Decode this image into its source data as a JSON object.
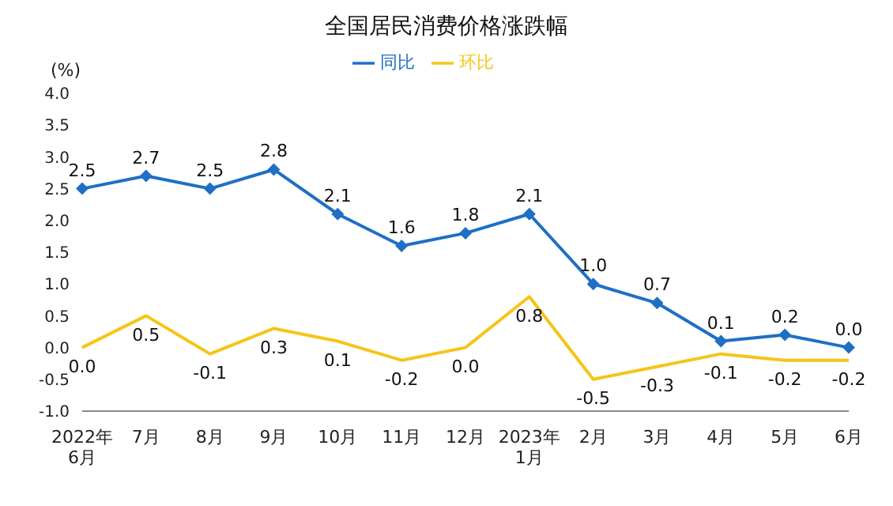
{
  "chart_data": {
    "type": "line",
    "title": "全国居民消费价格涨跌幅",
    "ylabel": "(%)",
    "categories": [
      "2022年\n6月",
      "7月",
      "8月",
      "9月",
      "10月",
      "11月",
      "12月",
      "2023年\n1月",
      "2月",
      "3月",
      "4月",
      "5月",
      "6月"
    ],
    "series": [
      {
        "name": "同比",
        "color": "#1f6fc5",
        "marker": "diamond",
        "values": [
          2.5,
          2.7,
          2.5,
          2.8,
          2.1,
          1.6,
          1.8,
          2.1,
          1.0,
          0.7,
          0.1,
          0.2,
          0.0
        ],
        "value_labels": [
          "2.5",
          "2.7",
          "2.5",
          "2.8",
          "2.1",
          "1.6",
          "1.8",
          "2.1",
          "1.0",
          "0.7",
          "0.1",
          "0.2",
          "0.0"
        ]
      },
      {
        "name": "环比",
        "color": "#f5c518",
        "marker": "none",
        "values": [
          0.0,
          0.5,
          -0.1,
          0.3,
          0.1,
          -0.2,
          0.0,
          0.8,
          -0.5,
          -0.3,
          -0.1,
          -0.2,
          -0.2
        ],
        "value_labels": [
          "0.0",
          "0.5",
          "-0.1",
          "0.3",
          "0.1",
          "-0.2",
          "0.0",
          "0.8",
          "-0.5",
          "-0.3",
          "-0.1",
          "-0.2",
          "-0.2"
        ]
      }
    ],
    "ylim": [
      -1,
      4
    ],
    "yticks": [
      {
        "value": -1,
        "label": "-1.0"
      },
      {
        "value": -0.5,
        "label": "-0.5"
      },
      {
        "value": 0,
        "label": "0.0"
      },
      {
        "value": 0.5,
        "label": "0.5"
      },
      {
        "value": 1,
        "label": "1.0"
      },
      {
        "value": 1.5,
        "label": "1.5"
      },
      {
        "value": 2,
        "label": "2.0"
      },
      {
        "value": 2.5,
        "label": "2.5"
      },
      {
        "value": 3,
        "label": "3.0"
      },
      {
        "value": 3.5,
        "label": "3.5"
      },
      {
        "value": 4,
        "label": "4.0"
      }
    ],
    "grid": false,
    "legend": "top",
    "line_style": "solid"
  }
}
